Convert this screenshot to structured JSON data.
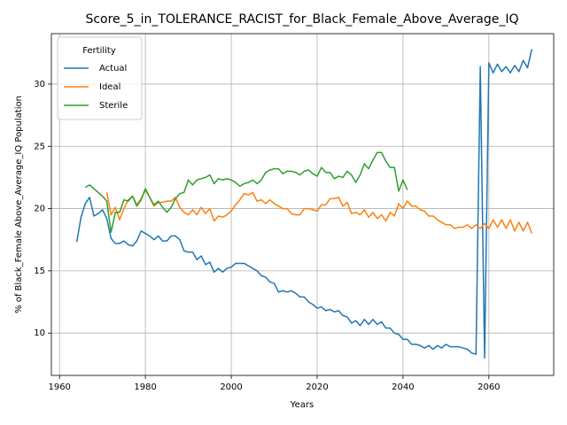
{
  "chart_data": {
    "type": "line",
    "title": "Score_5_in_TOLERANCE_RACIST_for_Black_Female_Above_Average_IQ",
    "x_label": "Years",
    "y_label": "% of Black_Female Above_Average_IQ Population",
    "legend_title": "Fertility",
    "legend_position": "upper left",
    "grid": true,
    "xlim": [
      1958.1,
      2075.1
    ],
    "ylim": [
      6.6,
      34.05
    ],
    "xticks": [
      1960,
      1980,
      2000,
      2020,
      2040,
      2060
    ],
    "yticks": [
      10,
      15,
      20,
      25,
      30
    ],
    "x": [
      1964,
      1965,
      1966,
      1967,
      1968,
      1969,
      1970,
      1971,
      1972,
      1973,
      1974,
      1975,
      1976,
      1977,
      1978,
      1979,
      1980,
      1981,
      1982,
      1983,
      1984,
      1985,
      1986,
      1987,
      1988,
      1989,
      1990,
      1991,
      1992,
      1993,
      1994,
      1995,
      1996,
      1997,
      1998,
      1999,
      2000,
      2001,
      2002,
      2003,
      2004,
      2005,
      2006,
      2007,
      2008,
      2009,
      2010,
      2011,
      2012,
      2013,
      2014,
      2015,
      2016,
      2017,
      2018,
      2019,
      2020,
      2021,
      2022,
      2023,
      2024,
      2025,
      2026,
      2027,
      2028,
      2029,
      2030,
      2031,
      2032,
      2033,
      2034,
      2035,
      2036,
      2037,
      2038,
      2039,
      2040,
      2041,
      2042,
      2043,
      2044,
      2045,
      2046,
      2047,
      2048,
      2049,
      2050,
      2051,
      2052,
      2053,
      2054,
      2055,
      2056,
      2057,
      2058,
      2059,
      2060,
      2061,
      2062,
      2063,
      2064,
      2065,
      2066,
      2067,
      2068,
      2069,
      2070
    ],
    "series": [
      {
        "name": "Actual",
        "color": "#1f77b4",
        "values": [
          17.3,
          19.3,
          20.4,
          20.9,
          19.4,
          19.6,
          19.9,
          19.2,
          17.6,
          17.2,
          17.2,
          17.4,
          17.1,
          17.0,
          17.4,
          18.2,
          18.0,
          17.8,
          17.5,
          17.8,
          17.4,
          17.4,
          17.8,
          17.8,
          17.5,
          16.6,
          16.5,
          16.5,
          15.9,
          16.2,
          15.5,
          15.7,
          14.9,
          15.2,
          14.9,
          15.2,
          15.3,
          15.6,
          15.6,
          15.6,
          15.4,
          15.2,
          15.0,
          14.6,
          14.5,
          14.1,
          14.0,
          13.3,
          13.4,
          13.3,
          13.4,
          13.2,
          12.9,
          12.9,
          12.5,
          12.3,
          12.0,
          12.1,
          11.8,
          11.9,
          11.7,
          11.8,
          11.4,
          11.3,
          10.8,
          11.0,
          10.6,
          11.1,
          10.7,
          11.1,
          10.7,
          10.9,
          10.4,
          10.4,
          10.0,
          9.9,
          9.5,
          9.5,
          9.1,
          9.1,
          9.0,
          8.8,
          9.0,
          8.7,
          9.0,
          8.8,
          9.1,
          8.9,
          8.9,
          8.9,
          8.8,
          8.7,
          8.4,
          8.3,
          31.4,
          8.0,
          31.7,
          30.9,
          31.6,
          31.0,
          31.4,
          30.9,
          31.5,
          31.0,
          31.9,
          31.3,
          32.8
        ]
      },
      {
        "name": "Ideal",
        "color": "#ff7f0e",
        "values": [
          null,
          null,
          null,
          null,
          null,
          null,
          null,
          21.3,
          19.5,
          20.1,
          19.1,
          20.0,
          20.7,
          21.0,
          20.3,
          20.8,
          21.5,
          20.9,
          20.2,
          20.5,
          20.5,
          20.6,
          20.6,
          20.9,
          20.1,
          19.7,
          19.5,
          19.9,
          19.5,
          20.1,
          19.6,
          20.0,
          19.0,
          19.4,
          19.3,
          19.5,
          19.8,
          20.3,
          20.7,
          21.2,
          21.1,
          21.3,
          20.6,
          20.7,
          20.4,
          20.7,
          20.4,
          20.2,
          20.0,
          20.0,
          19.6,
          19.5,
          19.5,
          20.0,
          20.0,
          19.9,
          19.8,
          20.3,
          20.3,
          20.8,
          20.8,
          20.9,
          20.2,
          20.5,
          19.6,
          19.7,
          19.5,
          19.9,
          19.3,
          19.7,
          19.2,
          19.5,
          19.0,
          19.7,
          19.4,
          20.4,
          20.0,
          20.6,
          20.2,
          20.2,
          19.9,
          19.8,
          19.4,
          19.4,
          19.1,
          18.9,
          18.7,
          18.7,
          18.4,
          18.5,
          18.5,
          18.7,
          18.4,
          18.7,
          18.4,
          18.8,
          18.4,
          19.1,
          18.5,
          19.1,
          18.4,
          19.1,
          18.2,
          18.9,
          18.2,
          18.9,
          18.0
        ]
      },
      {
        "name": "Sterile",
        "color": "#2ca02c",
        "values": [
          null,
          null,
          21.7,
          21.9,
          21.6,
          21.3,
          21.0,
          20.6,
          18.1,
          19.7,
          19.7,
          20.7,
          20.6,
          21.0,
          20.2,
          20.7,
          21.6,
          20.9,
          20.3,
          20.6,
          20.1,
          19.7,
          20.1,
          20.8,
          21.2,
          21.3,
          22.3,
          21.9,
          22.3,
          22.4,
          22.5,
          22.7,
          22.0,
          22.4,
          22.3,
          22.4,
          22.3,
          22.1,
          21.8,
          22.0,
          22.1,
          22.3,
          22.0,
          22.3,
          22.9,
          23.1,
          23.2,
          23.2,
          22.8,
          23.0,
          23.0,
          22.9,
          22.7,
          23.0,
          23.1,
          22.8,
          22.6,
          23.3,
          22.9,
          22.9,
          22.4,
          22.6,
          22.5,
          23.0,
          22.7,
          22.1,
          22.7,
          23.6,
          23.2,
          23.9,
          24.5,
          24.5,
          23.8,
          23.3,
          23.3,
          21.4,
          22.3,
          21.5,
          null,
          null,
          null,
          null,
          null,
          null,
          null,
          null,
          null,
          null,
          null,
          null,
          null,
          null,
          null,
          null,
          null,
          null,
          null,
          null,
          null,
          null,
          null,
          null,
          null,
          null,
          null,
          null,
          null
        ]
      }
    ]
  }
}
